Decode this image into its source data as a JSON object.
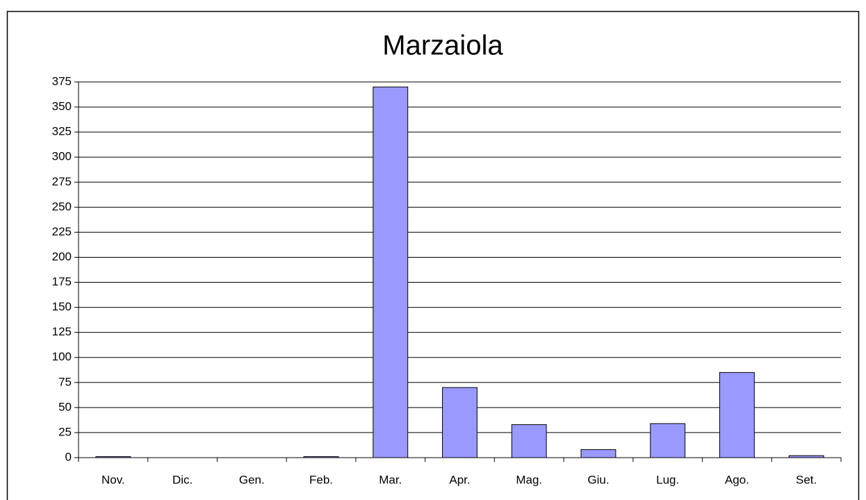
{
  "chart_data": {
    "type": "bar",
    "title": "Marzaiola",
    "categories": [
      "Nov.",
      "Dic.",
      "Gen.",
      "Feb.",
      "Mar.",
      "Apr.",
      "Mag.",
      "Giu.",
      "Lug.",
      "Ago.",
      "Set."
    ],
    "values": [
      1,
      0,
      0,
      1,
      370,
      70,
      33,
      8,
      34,
      85,
      2
    ],
    "color": "#9999ff",
    "ylim": [
      0,
      375
    ],
    "yticks": [
      0,
      25,
      50,
      75,
      100,
      125,
      150,
      175,
      200,
      225,
      250,
      275,
      300,
      325,
      350,
      375
    ],
    "grid": true
  }
}
